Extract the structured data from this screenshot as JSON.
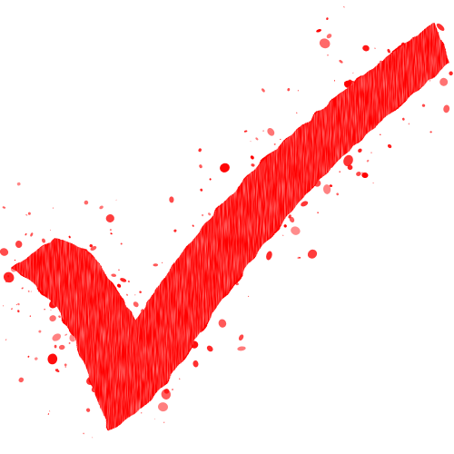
{
  "graphic": {
    "icon": "grunge-checkmark",
    "fill_color": "#ff0000",
    "highlight_color": "#ffd6d6",
    "background_color": "#ffffff"
  }
}
